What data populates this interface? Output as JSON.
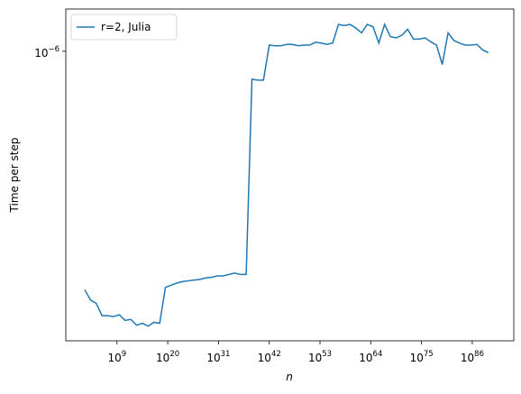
{
  "chart_data": {
    "type": "line",
    "xlabel": "n",
    "ylabel": "Time per step",
    "log_x": true,
    "log_y": true,
    "legend": "upper left",
    "xlim": [
      0.008,
      1e+95
    ],
    "ylim": [
      1.28e-07,
      1.35e-06
    ],
    "xticks": [
      {
        "value": 1000000000.0,
        "label": "10",
        "exponent": "9"
      },
      {
        "value": 1e+20,
        "label": "10",
        "exponent": "20"
      },
      {
        "value": 1e+31,
        "label": "10",
        "exponent": "31"
      },
      {
        "value": 1e+42,
        "label": "10",
        "exponent": "42"
      },
      {
        "value": 1e+53,
        "label": "10",
        "exponent": "53"
      },
      {
        "value": 1e+64,
        "label": "10",
        "exponent": "64"
      },
      {
        "value": 1e+75,
        "label": "10",
        "exponent": "75"
      },
      {
        "value": 1e+86,
        "label": "10",
        "exponent": "86"
      }
    ],
    "yticks": [
      {
        "value": 1e-06,
        "label": "10",
        "exponent": "−6"
      }
    ],
    "x": [
      100.0,
      1780.0,
      31600.0,
      562000.0,
      10000000.0,
      178000000.0,
      3160000000.0,
      56200000000.0,
      1000000000000.0,
      17800000000000.0,
      316000000000000.0,
      5620000000000000.0,
      1e+17,
      1.78e+18,
      3.16e+19,
      5.62e+20,
      1e+22,
      1.78e+23,
      3.16e+24,
      5.62e+25,
      1e+27,
      1.78e+28,
      3.16e+29,
      5.62e+30,
      1e+32,
      1.78e+33,
      3.16e+34,
      5.62e+35,
      1e+37,
      1.78e+38,
      3.16e+39,
      5.62e+40,
      1e+42,
      1.78e+43,
      3.16e+44,
      5.62e+45,
      1e+47,
      1.78e+48,
      3.16e+49,
      5.62e+50,
      1e+52,
      1.78e+53,
      3.16e+54,
      5.62e+55,
      1e+57,
      1.78e+58,
      3.16e+59,
      5.62e+60,
      1e+62,
      1.78e+63,
      3.16e+64,
      5.62e+65,
      1e+67,
      1.78e+68,
      3.16e+69,
      5.62e+70,
      1e+72,
      1.78e+73,
      3.16e+74,
      5.62e+75,
      1e+77,
      1.78e+78,
      3.16e+79,
      5.62e+80,
      1e+82,
      1.78e+83,
      3.16e+84,
      5.62e+85,
      1e+87,
      1.78e+88,
      3.16e+89
    ],
    "series": [
      {
        "name": "r=2, Julia",
        "color": "#1f77b4",
        "values": [
          1.84e-07,
          1.71e-07,
          1.67e-07,
          1.53e-07,
          1.53e-07,
          1.52e-07,
          1.54e-07,
          1.48e-07,
          1.49e-07,
          1.43e-07,
          1.45e-07,
          1.42e-07,
          1.46e-07,
          1.45e-07,
          1.87e-07,
          1.9e-07,
          1.93e-07,
          1.95e-07,
          1.96e-07,
          1.97e-07,
          1.98e-07,
          2e-07,
          2.01e-07,
          2.03e-07,
          2.03e-07,
          2.05e-07,
          2.07e-07,
          2.05e-07,
          2.05e-07,
          8.2e-07,
          8.15e-07,
          8.15e-07,
          1.045e-06,
          1.04e-06,
          1.04e-06,
          1.05e-06,
          1.05e-06,
          1.04e-06,
          1.045e-06,
          1.045e-06,
          1.066e-06,
          1.06e-06,
          1.05e-06,
          1.06e-06,
          1.21e-06,
          1.2e-06,
          1.21e-06,
          1.18e-06,
          1.14e-06,
          1.21e-06,
          1.19e-06,
          1.06e-06,
          1.21e-06,
          1.11e-06,
          1.1e-06,
          1.12e-06,
          1.17e-06,
          1.09e-06,
          1.09e-06,
          1.1e-06,
          1.07e-06,
          1.045e-06,
          9.1e-07,
          1.14e-06,
          1.08e-06,
          1.06e-06,
          1.045e-06,
          1.045e-06,
          1.05e-06,
          1.01e-06,
          9.9e-07
        ]
      }
    ]
  }
}
